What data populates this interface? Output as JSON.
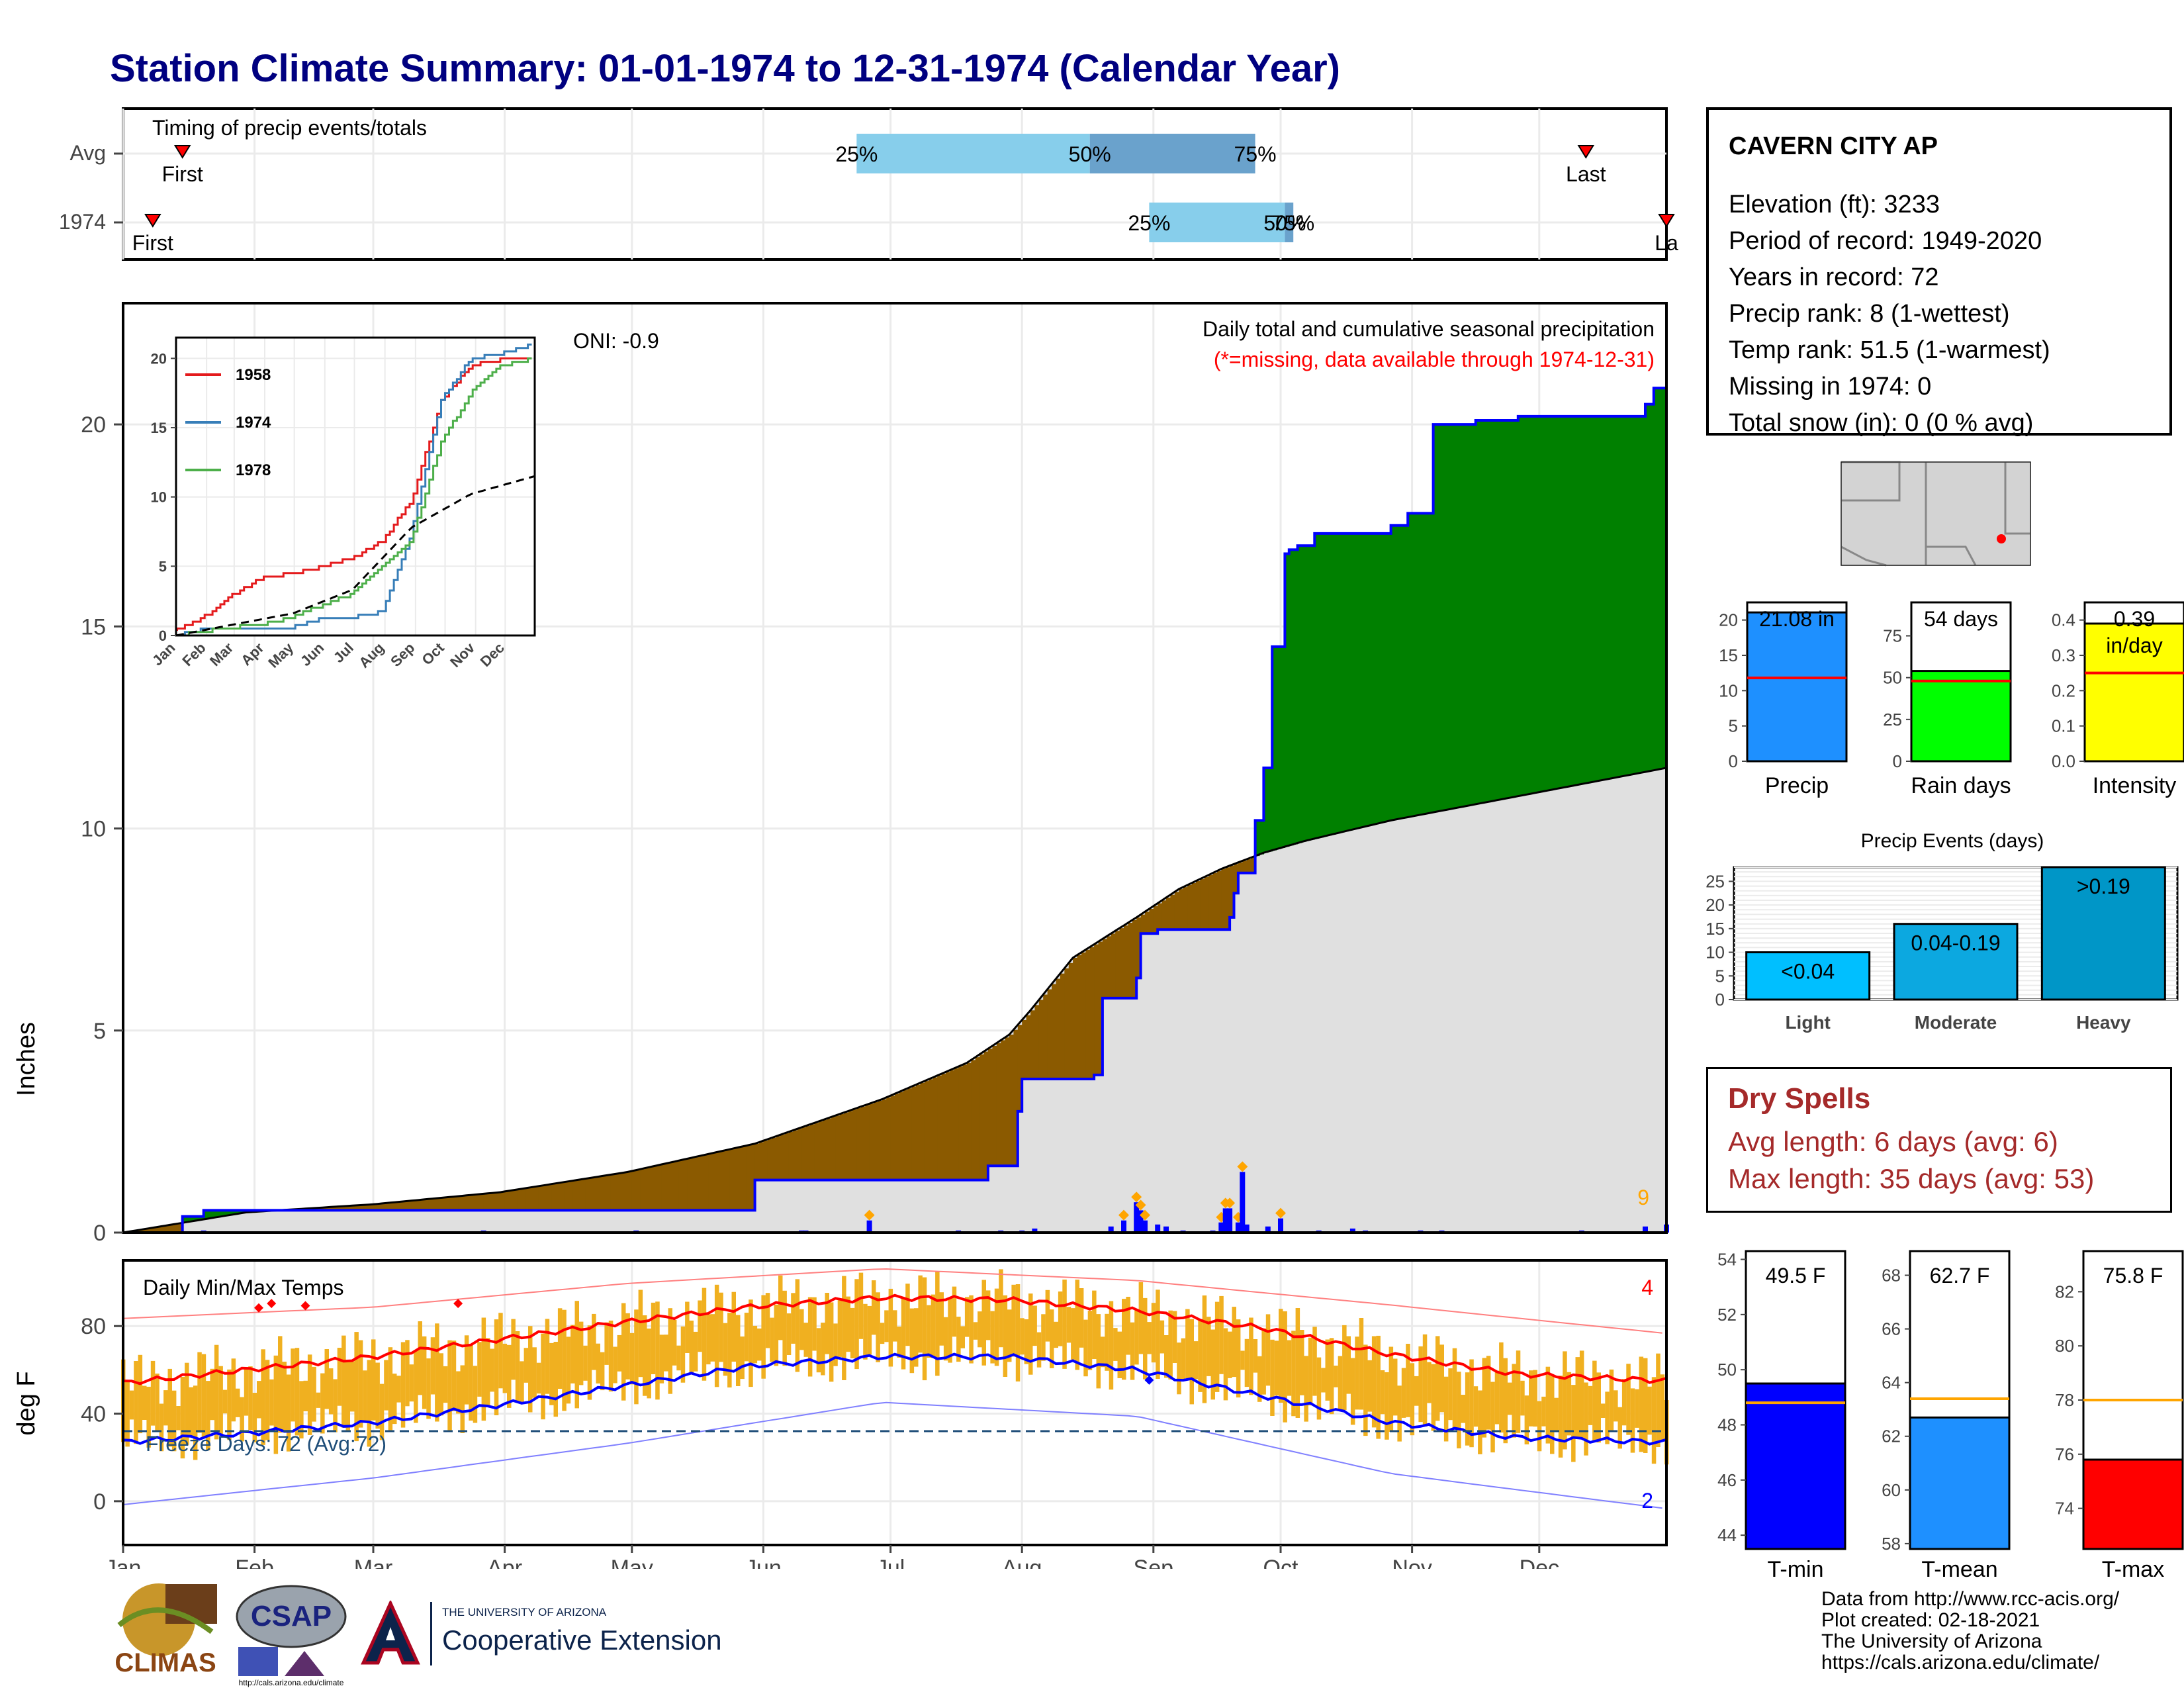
{
  "title": "Station Climate Summary: 01-01-1974 to 12-31-1974 (Calendar Year)",
  "timing_panel": {
    "label": "Timing of precip events/totals",
    "rows": [
      "Avg",
      "1974"
    ],
    "first_label": "First",
    "last_label": "Last",
    "last_label_clipped": "La",
    "pct_labels": [
      "25%",
      "50%",
      "75%"
    ],
    "row_1974_pct_labels": [
      "25%",
      "50%",
      "75%"
    ],
    "avg_doy": {
      "first": 15,
      "p25": 174,
      "p50": 229,
      "p75": 268,
      "last": 346
    },
    "y1974_doy": {
      "first": 8,
      "p25": 243,
      "p50": 275,
      "p75": 277,
      "last": 365
    }
  },
  "main_panel": {
    "ylabel": "Inches",
    "y_ticks": [
      "0",
      "5",
      "10",
      "15",
      "20"
    ],
    "oni": "ONI: -0.9",
    "caption": "Daily total and cumulative seasonal precipitation",
    "missing_note": "(*=missing, data available through 1974-12-31)",
    "corner_count": "9"
  },
  "inset": {
    "legend": [
      "1958",
      "1974",
      "1978"
    ],
    "y_ticks": [
      "0",
      "5",
      "10",
      "15",
      "20"
    ],
    "months": [
      "Jan",
      "Feb",
      "Mar",
      "Apr",
      "May",
      "Jun",
      "Jul",
      "Aug",
      "Sep",
      "Oct",
      "Nov",
      "Dec"
    ]
  },
  "temp_panel": {
    "ylabel": "deg F",
    "title": "Daily Min/Max Temps",
    "y_ticks": [
      "0",
      "40",
      "80"
    ],
    "freeze": "Freeze Days: 72 (Avg:72)",
    "max_count": "4",
    "min_count": "2"
  },
  "months": [
    "Jan",
    "Feb",
    "Mar",
    "Apr",
    "May",
    "Jun",
    "Jul",
    "Aug",
    "Sep",
    "Oct",
    "Nov",
    "Dec"
  ],
  "station": {
    "name": "CAVERN CITY AP",
    "lines": [
      "Elevation (ft): 3233",
      "Period of record: 1949-2020",
      "Years in record: 72",
      "Precip rank: 8 (1-wettest)",
      "Temp rank: 51.5 (1-warmest)",
      "Missing in 1974: 0",
      "Total snow (in): 0 (0 % avg)"
    ]
  },
  "bars": {
    "precip": {
      "label": "Precip",
      "value_label": "21.08 in",
      "ticks": [
        "0",
        "5",
        "10",
        "15",
        "20"
      ]
    },
    "raindays": {
      "label": "Rain days",
      "value_label": "54 days",
      "ticks": [
        "0",
        "25",
        "50",
        "75"
      ]
    },
    "intensity": {
      "label": "Intensity",
      "value_label": "0.39",
      "unit_label": "in/day",
      "ticks": [
        "0.0",
        "0.1",
        "0.2",
        "0.3",
        "0.4"
      ]
    }
  },
  "events": {
    "title": "Precip Events (days)",
    "ticks": [
      "0",
      "5",
      "10",
      "15",
      "20",
      "25"
    ],
    "categories": [
      "Light",
      "Moderate",
      "Heavy"
    ],
    "bar_labels": [
      "<0.04",
      "0.04-0.19",
      ">0.19"
    ]
  },
  "dry_spells": {
    "title": "Dry Spells",
    "avg": "Avg length: 6 days (avg: 6)",
    "max": "Max length: 35 days (avg: 53)"
  },
  "temp_bars": {
    "tmin": {
      "label": "T-min",
      "value_label": "49.5 F",
      "ticks": [
        "44",
        "46",
        "48",
        "50",
        "52",
        "54"
      ]
    },
    "tmean": {
      "label": "T-mean",
      "value_label": "62.7 F",
      "ticks": [
        "58",
        "60",
        "62",
        "64",
        "66",
        "68"
      ]
    },
    "tmax": {
      "label": "T-max",
      "value_label": "75.8 F",
      "ticks": [
        "74",
        "76",
        "78",
        "80",
        "82"
      ]
    }
  },
  "credits": [
    "Data from http://www.rcc-acis.org/",
    "Plot created: 02-18-2021",
    "The University of Arizona",
    "https://cals.arizona.edu/climate/"
  ],
  "logos": {
    "climas": "CLIMAS",
    "csap": "CSAP",
    "csap_url": "http://cals.arizona.edu/climate",
    "ua_small": "THE UNIVERSITY OF ARIZONA",
    "ua_big": "Cooperative Extension"
  },
  "colors": {
    "title": "#000080",
    "cum_1974": "#0000ff",
    "surplus": "#008000",
    "deficit": "#8b5a00",
    "avg_fill": "#e0e0e0",
    "tmax": "#ff0000",
    "tmin": "#0000ff",
    "bars_temp": "#f0b020",
    "precip_bar": "#1e90ff",
    "raindays_bar": "#00ff00",
    "intensity_bar": "#ffff00",
    "dry_spells": "#a52a2a"
  },
  "chart_data": [
    {
      "type": "area",
      "title": "Daily total and cumulative seasonal precipitation",
      "ylabel": "Inches",
      "ylim": [
        0,
        23
      ],
      "series": [
        {
          "name": "1974",
          "x": [
            1,
            15,
            20,
            60,
            90,
            120,
            150,
            180,
            205,
            210,
            212,
            213,
            230,
            232,
            240,
            241,
            245,
            252,
            255,
            262,
            263,
            264,
            268,
            270,
            272,
            275,
            276,
            278,
            282,
            300,
            304,
            310,
            315,
            320,
            330,
            340,
            358,
            360,
            362,
            365
          ],
          "values": [
            0,
            0.4,
            0.55,
            0.55,
            0.55,
            0.55,
            1.3,
            1.3,
            1.65,
            1.65,
            3.0,
            3.8,
            3.9,
            5.8,
            6.3,
            7.4,
            7.5,
            7.5,
            7.5,
            7.8,
            8.4,
            8.9,
            10.2,
            11.5,
            14.5,
            16.8,
            16.9,
            17.0,
            17.3,
            17.5,
            17.8,
            20.0,
            20.0,
            20.1,
            20.2,
            20.2,
            20.2,
            20.5,
            20.9,
            21.08
          ]
        },
        {
          "name": "Avg",
          "x": [
            1,
            30,
            60,
            90,
            120,
            150,
            180,
            200,
            210,
            215,
            225,
            240,
            250,
            260,
            270,
            280,
            300,
            320,
            340,
            365
          ],
          "values": [
            0,
            0.5,
            0.7,
            1.0,
            1.5,
            2.2,
            3.3,
            4.2,
            4.9,
            5.5,
            6.8,
            7.8,
            8.5,
            9.0,
            9.4,
            9.7,
            10.2,
            10.6,
            11.0,
            11.5
          ]
        }
      ],
      "daily_precip_days": [
        20,
        86,
        122,
        161,
        162,
        177,
        198,
        208,
        213,
        216,
        234,
        237,
        240,
        241,
        242,
        245,
        247,
        251,
        258,
        260,
        261,
        262,
        264,
        265,
        266,
        271,
        274,
        283,
        291,
        294,
        307,
        312,
        345,
        360,
        365
      ],
      "daily_precip_values": [
        0.05,
        0.05,
        0.05,
        0.05,
        0.05,
        0.3,
        0.05,
        0.05,
        0.05,
        0.1,
        0.15,
        0.3,
        0.75,
        0.55,
        0.3,
        0.2,
        0.15,
        0.05,
        0.05,
        0.25,
        0.6,
        0.6,
        0.25,
        1.5,
        0.2,
        0.15,
        0.35,
        0.05,
        0.1,
        0.05,
        0.05,
        0.05,
        0.05,
        0.15,
        0.2
      ]
    },
    {
      "type": "line",
      "title": "",
      "x_categories": [
        "Jan",
        "Feb",
        "Mar",
        "Apr",
        "May",
        "Jun",
        "Jul",
        "Aug",
        "Sep",
        "Oct",
        "Nov",
        "Dec"
      ],
      "ylim": [
        0,
        21
      ],
      "series": [
        {
          "name": "1958",
          "x": [
            1,
            30,
            60,
            90,
            120,
            150,
            180,
            210,
            240,
            270,
            300,
            330,
            365
          ],
          "values": [
            0.4,
            1.4,
            3.0,
            4.2,
            4.5,
            5.0,
            5.6,
            6.8,
            9.8,
            17.0,
            19.5,
            19.9,
            20.0
          ]
        },
        {
          "name": "1974",
          "x": [
            1,
            30,
            60,
            90,
            120,
            150,
            180,
            210,
            240,
            270,
            300,
            330,
            365
          ],
          "values": [
            0,
            0.5,
            0.55,
            0.55,
            0.6,
            1.3,
            1.3,
            1.7,
            7.5,
            17.0,
            20.0,
            20.3,
            21.08
          ]
        },
        {
          "name": "1978",
          "x": [
            1,
            30,
            60,
            90,
            120,
            150,
            180,
            210,
            240,
            270,
            300,
            330,
            365
          ],
          "values": [
            0,
            0.3,
            0.6,
            0.8,
            1.4,
            2.2,
            3.0,
            5.0,
            7.0,
            14.0,
            17.5,
            19.5,
            20.0
          ]
        },
        {
          "name": "Avg",
          "x": [
            1,
            60,
            120,
            180,
            240,
            300,
            365
          ],
          "values": [
            0,
            0.8,
            1.6,
            3.3,
            7.8,
            10.2,
            11.5
          ]
        }
      ]
    },
    {
      "type": "line",
      "title": "Daily Min/Max Temps",
      "ylabel": "deg F",
      "ylim": [
        -20,
        110
      ],
      "series": [
        {
          "name": "Avg Tmax",
          "x": [
            1,
            30,
            60,
            90,
            120,
            150,
            180,
            210,
            240,
            270,
            300,
            330,
            365
          ],
          "values": [
            54,
            60,
            66,
            74,
            82,
            89,
            93,
            92,
            87,
            79,
            67,
            58,
            55
          ]
        },
        {
          "name": "Avg Tmin",
          "x": [
            1,
            30,
            60,
            90,
            120,
            150,
            180,
            210,
            240,
            270,
            300,
            330,
            365
          ],
          "values": [
            27,
            31,
            36,
            44,
            53,
            62,
            66,
            66,
            60,
            48,
            36,
            29,
            27
          ]
        },
        {
          "name": "Record Tmax",
          "x": [
            1,
            60,
            120,
            180,
            240,
            300,
            365
          ],
          "values": [
            80,
            86,
            98,
            106,
            102,
            92,
            80
          ]
        },
        {
          "name": "Record Tmin",
          "x": [
            1,
            60,
            120,
            180,
            240,
            300,
            365
          ],
          "values": [
            -5,
            8,
            25,
            45,
            40,
            15,
            0
          ]
        }
      ],
      "freeze_line": 32
    },
    {
      "type": "bar",
      "title": "",
      "categories": [
        "Precip",
        "Rain days",
        "Intensity"
      ],
      "values": [
        21.08,
        54,
        0.39
      ],
      "averages": [
        11.8,
        48,
        0.25
      ]
    },
    {
      "type": "bar",
      "title": "Precip Events (days)",
      "categories": [
        "Light",
        "Moderate",
        "Heavy"
      ],
      "values": [
        10,
        16,
        28
      ]
    },
    {
      "type": "bar",
      "title": "",
      "categories": [
        "T-min",
        "T-mean",
        "T-max"
      ],
      "values": [
        49.5,
        62.7,
        75.8
      ],
      "averages": [
        48.8,
        63.4,
        78.0
      ]
    }
  ]
}
